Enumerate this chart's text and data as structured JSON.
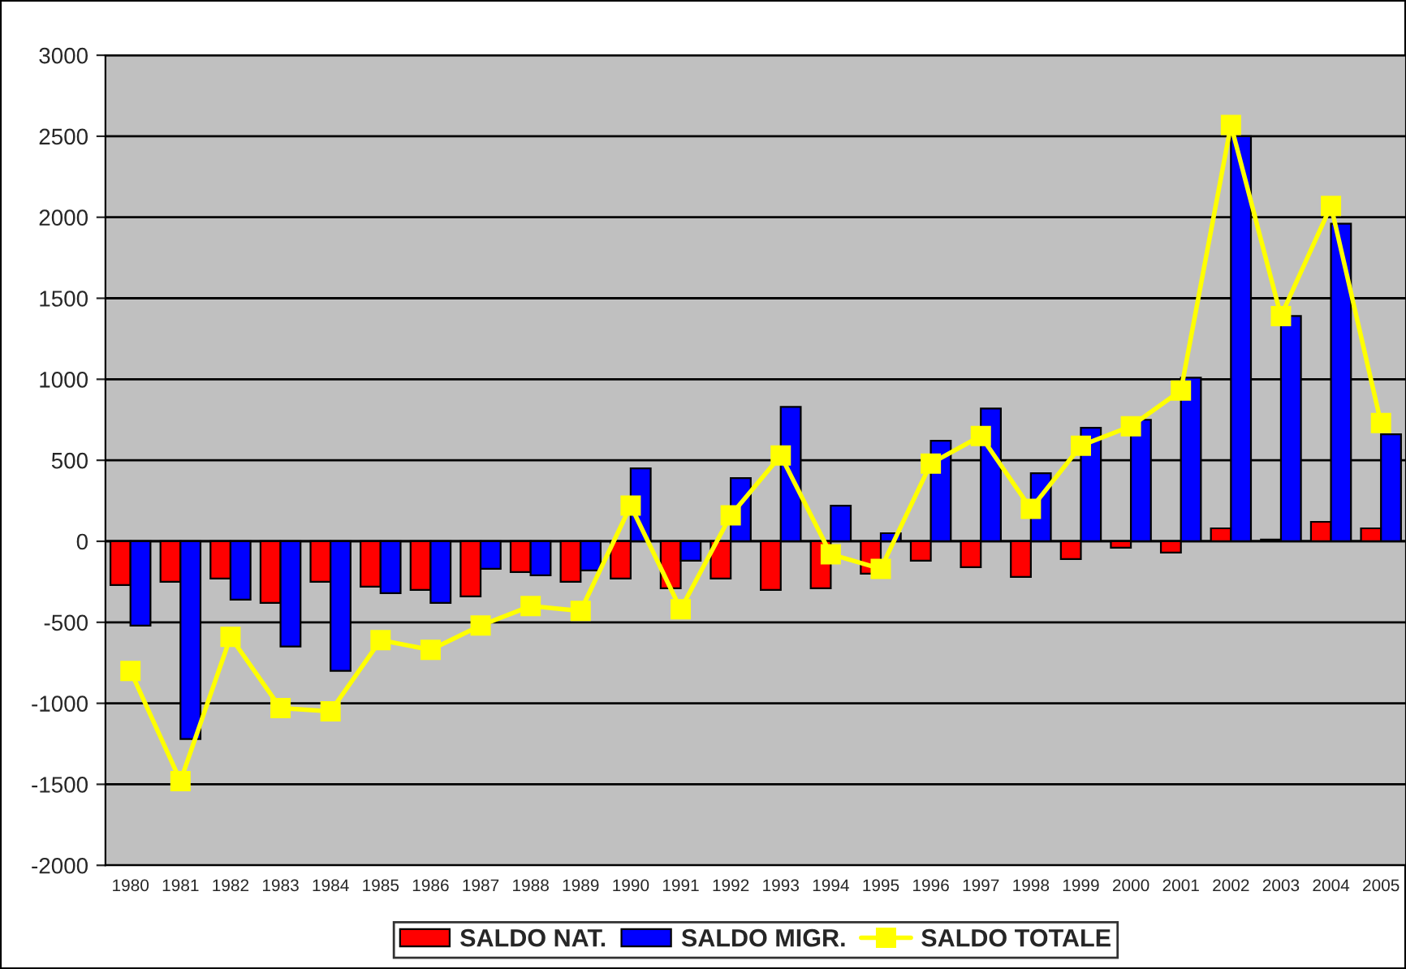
{
  "chart_data": {
    "type": "bar",
    "categories": [
      "1980",
      "1981",
      "1982",
      "1983",
      "1984",
      "1985",
      "1986",
      "1987",
      "1988",
      "1989",
      "1990",
      "1991",
      "1992",
      "1993",
      "1994",
      "1995",
      "1996",
      "1997",
      "1998",
      "1999",
      "2000",
      "2001",
      "2002",
      "2003",
      "2004",
      "2005"
    ],
    "series": [
      {
        "name": "SALDO NAT.",
        "color": "#ff0000",
        "values": [
          -270,
          -250,
          -230,
          -380,
          -250,
          -280,
          -300,
          -340,
          -190,
          -250,
          -230,
          -290,
          -230,
          -300,
          -290,
          -200,
          -120,
          -160,
          -220,
          -110,
          -40,
          -70,
          80,
          10,
          120,
          80
        ]
      },
      {
        "name": "SALDO MIGR.",
        "color": "#0000ff",
        "values": [
          -520,
          -1220,
          -360,
          -650,
          -800,
          -320,
          -380,
          -170,
          -210,
          -180,
          450,
          -120,
          390,
          830,
          220,
          50,
          620,
          820,
          420,
          700,
          750,
          1010,
          2500,
          1390,
          1960,
          660
        ]
      },
      {
        "name": "SALDO TOTALE",
        "type": "line",
        "color": "#ffff00",
        "marker": "square",
        "values": [
          -800,
          -1480,
          -590,
          -1030,
          -1050,
          -610,
          -670,
          -520,
          -400,
          -430,
          220,
          -420,
          160,
          530,
          -80,
          -170,
          480,
          650,
          200,
          590,
          710,
          930,
          2570,
          1390,
          2070,
          730
        ]
      }
    ],
    "ylim": [
      -2000,
      3000
    ],
    "yticks": [
      -2000,
      -1500,
      -1000,
      -500,
      0,
      500,
      1000,
      1500,
      2000,
      2500,
      3000
    ],
    "grid": "y",
    "legend": "bottom"
  }
}
